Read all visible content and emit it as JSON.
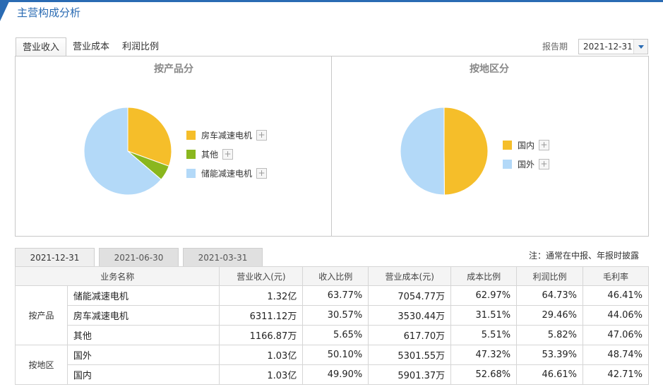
{
  "page": {
    "title": "主营构成分析"
  },
  "top_tabs": [
    {
      "label": "营业收入",
      "active": true
    },
    {
      "label": "营业成本",
      "active": false
    },
    {
      "label": "利润比例",
      "active": false
    }
  ],
  "report_period": {
    "label": "报告期",
    "value": "2021-12-31"
  },
  "colors": {
    "yellow": "#f5be2a",
    "green": "#8ab71e",
    "blue": "#b3d9f8",
    "accent": "#2a6bb3"
  },
  "chart_data": [
    {
      "type": "pie",
      "title": "按产品分",
      "slices": [
        {
          "label": "房车减速电机",
          "value": 30.57,
          "color": "#f5be2a"
        },
        {
          "label": "其他",
          "value": 5.65,
          "color": "#8ab71e"
        },
        {
          "label": "储能减速电机",
          "value": 63.77,
          "color": "#b3d9f8"
        }
      ]
    },
    {
      "type": "pie",
      "title": "按地区分",
      "slices": [
        {
          "label": "国内",
          "value": 49.9,
          "color": "#f5be2a"
        },
        {
          "label": "国外",
          "value": 50.1,
          "color": "#b3d9f8"
        }
      ]
    }
  ],
  "legend_plus": "+",
  "date_tabs": [
    {
      "label": "2021-12-31",
      "active": true
    },
    {
      "label": "2021-06-30",
      "active": false
    },
    {
      "label": "2021-03-31",
      "active": false
    }
  ],
  "note": "注：通常在中报、年报时披露",
  "table": {
    "headers": [
      "业务名称",
      "营业收入(元)",
      "收入比例",
      "营业成本(元)",
      "成本比例",
      "利润比例",
      "毛利率"
    ],
    "groups": [
      {
        "name": "按产品",
        "rows": [
          [
            "储能减速电机",
            "1.32亿",
            "63.77%",
            "7054.77万",
            "62.97%",
            "64.73%",
            "46.41%"
          ],
          [
            "房车减速电机",
            "6311.12万",
            "30.57%",
            "3530.44万",
            "31.51%",
            "29.46%",
            "44.06%"
          ],
          [
            "其他",
            "1166.87万",
            "5.65%",
            "617.70万",
            "5.51%",
            "5.82%",
            "47.06%"
          ]
        ]
      },
      {
        "name": "按地区",
        "rows": [
          [
            "国外",
            "1.03亿",
            "50.10%",
            "5301.55万",
            "47.32%",
            "53.39%",
            "48.74%"
          ],
          [
            "国内",
            "1.03亿",
            "49.90%",
            "5901.37万",
            "52.68%",
            "46.61%",
            "42.71%"
          ]
        ]
      }
    ]
  }
}
